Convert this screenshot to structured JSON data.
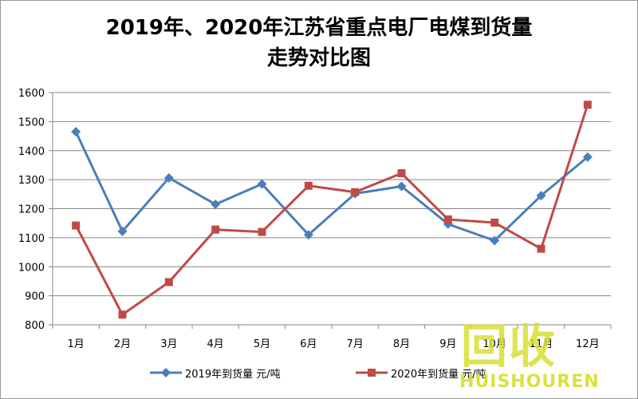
{
  "chart_data": {
    "type": "line",
    "title_line1": "2019年、2020年江苏省重点电厂电煤到货量",
    "title_line2": "走势对比图",
    "categories": [
      "1月",
      "2月",
      "3月",
      "4月",
      "5月",
      "6月",
      "7月",
      "8月",
      "9月",
      "10月",
      "11月",
      "12月"
    ],
    "ylim": [
      800,
      1600
    ],
    "yticks": [
      800,
      900,
      1000,
      1100,
      1200,
      1300,
      1400,
      1500,
      1600
    ],
    "grid": true,
    "legend_position": "bottom",
    "series": [
      {
        "name": "2019年到货量 元/吨",
        "color": "#4a7ebb",
        "marker": "diamond",
        "values": [
          1465,
          1122,
          1306,
          1215,
          1285,
          1110,
          1252,
          1277,
          1147,
          1090,
          1245,
          1378
        ]
      },
      {
        "name": "2020年到货量 元/吨",
        "color": "#be4b48",
        "marker": "square",
        "values": [
          1142,
          835,
          947,
          1128,
          1120,
          1279,
          1257,
          1322,
          1163,
          1152,
          1062,
          1558
        ]
      }
    ]
  },
  "watermark": {
    "cn": "回收",
    "en": "HUISHOUREN"
  }
}
